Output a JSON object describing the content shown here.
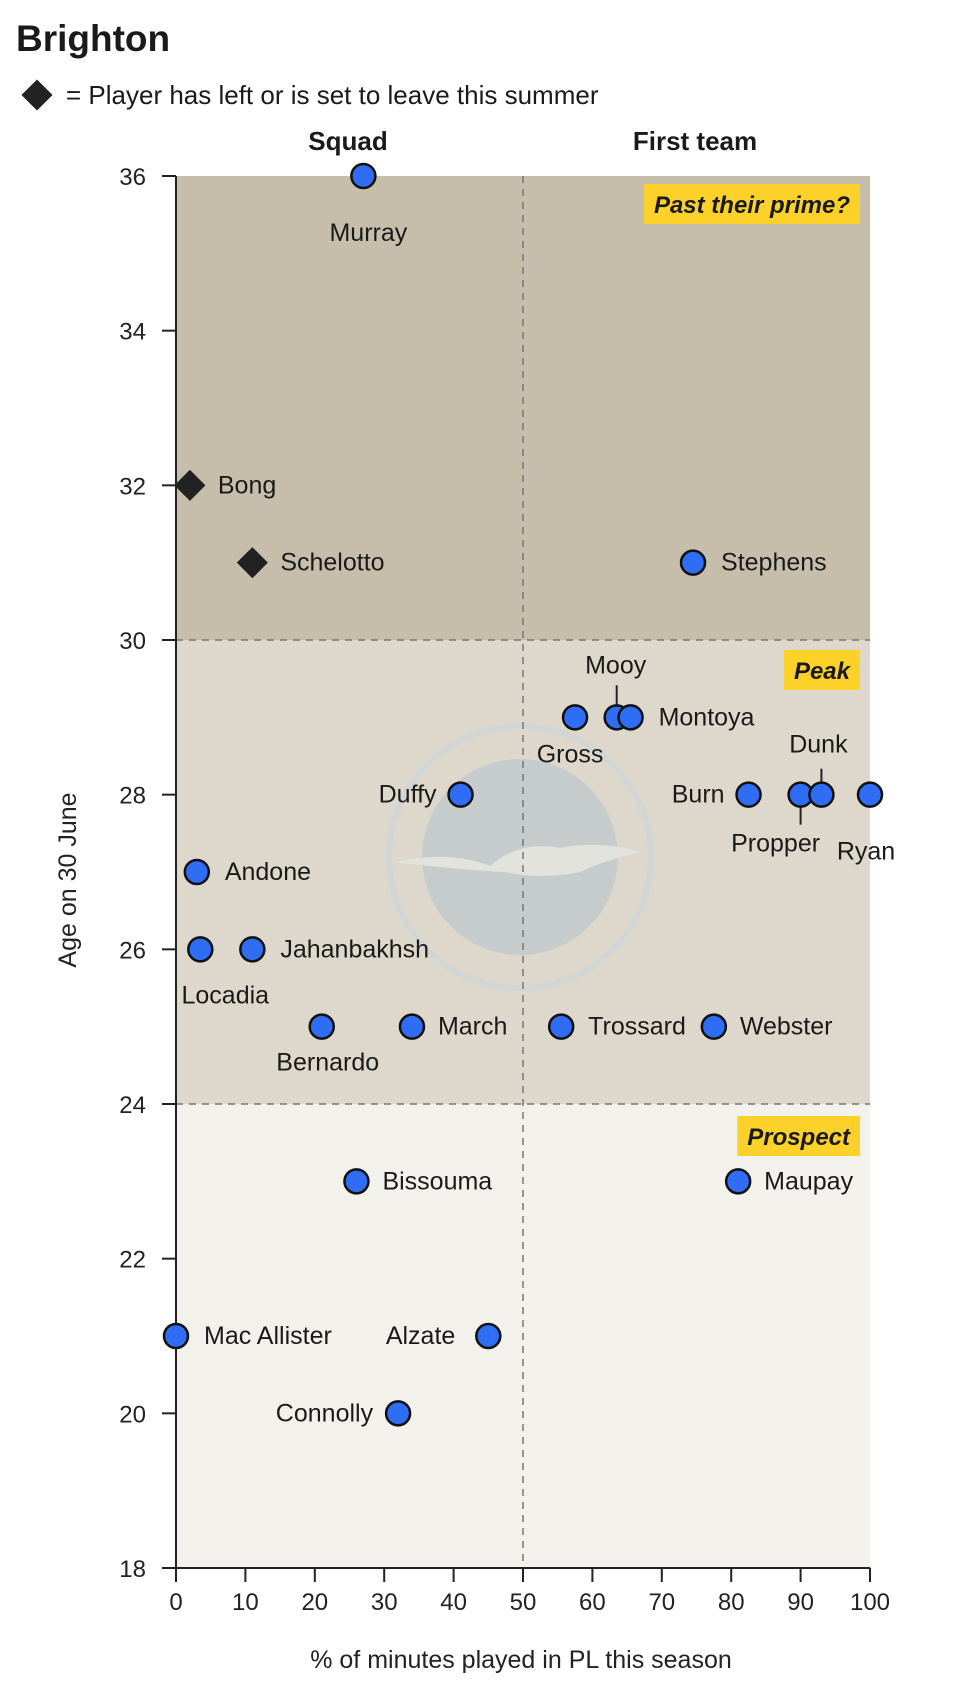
{
  "header": {
    "title": "Brighton",
    "legend_text": "= Player has left or is set to leave this summer"
  },
  "colors": {
    "zone_past_prime": "#c6beab",
    "zone_peak": "#ddd8cb",
    "zone_prospect": "#f3f1ec",
    "label_box": "#fcd12a",
    "active_marker": "#2f6df4",
    "leaving_marker": "#222222"
  },
  "chart_data": {
    "type": "scatter",
    "xlabel": "% of minutes played in PL this season",
    "ylabel": "Age on 30 June",
    "xlim": [
      0,
      100
    ],
    "ylim": [
      18,
      36
    ],
    "x_ticks": [
      0,
      10,
      20,
      30,
      40,
      50,
      60,
      70,
      80,
      90,
      100
    ],
    "y_ticks": [
      18,
      20,
      22,
      24,
      26,
      28,
      30,
      32,
      34,
      36
    ],
    "column_headers": [
      "Squad",
      "First team"
    ],
    "reference_lines": {
      "x": 50,
      "y": [
        24,
        30
      ]
    },
    "zones": [
      {
        "label": "Past their prime?",
        "y_range": [
          30,
          36
        ]
      },
      {
        "label": "Peak",
        "y_range": [
          24,
          30
        ]
      },
      {
        "label": "Prospect",
        "y_range": [
          18,
          24
        ]
      }
    ],
    "points": [
      {
        "name": "Murray",
        "x": 27,
        "y": 36,
        "leaving": false
      },
      {
        "name": "Bong",
        "x": 2,
        "y": 32,
        "leaving": true
      },
      {
        "name": "Schelotto",
        "x": 11,
        "y": 31,
        "leaving": true
      },
      {
        "name": "Stephens",
        "x": 74.5,
        "y": 31,
        "leaving": false
      },
      {
        "name": "Mooy",
        "x": 63.5,
        "y": 29,
        "leaving": false
      },
      {
        "name": "Montoya",
        "x": 65.5,
        "y": 29,
        "leaving": false
      },
      {
        "name": "Gross",
        "x": 57.5,
        "y": 29,
        "leaving": false
      },
      {
        "name": "Duffy",
        "x": 41,
        "y": 28,
        "leaving": false
      },
      {
        "name": "Burn",
        "x": 82.5,
        "y": 28,
        "leaving": false
      },
      {
        "name": "Propper",
        "x": 90,
        "y": 28,
        "leaving": false
      },
      {
        "name": "Dunk",
        "x": 93,
        "y": 28,
        "leaving": false
      },
      {
        "name": "Ryan",
        "x": 100,
        "y": 28,
        "leaving": false
      },
      {
        "name": "Andone",
        "x": 3,
        "y": 27,
        "leaving": false
      },
      {
        "name": "Locadia",
        "x": 3.5,
        "y": 26,
        "leaving": false
      },
      {
        "name": "Jahanbakhsh",
        "x": 11,
        "y": 26,
        "leaving": false
      },
      {
        "name": "Bernardo",
        "x": 21,
        "y": 25,
        "leaving": false
      },
      {
        "name": "March",
        "x": 34,
        "y": 25,
        "leaving": false
      },
      {
        "name": "Trossard",
        "x": 55.5,
        "y": 25,
        "leaving": false
      },
      {
        "name": "Webster",
        "x": 77.5,
        "y": 25,
        "leaving": false
      },
      {
        "name": "Bissouma",
        "x": 26,
        "y": 23,
        "leaving": false
      },
      {
        "name": "Maupay",
        "x": 81,
        "y": 23,
        "leaving": false
      },
      {
        "name": "Mac Allister",
        "x": 0,
        "y": 21,
        "leaving": false
      },
      {
        "name": "Alzate",
        "x": 45,
        "y": 21,
        "leaving": false
      },
      {
        "name": "Connolly",
        "x": 32,
        "y": 20,
        "leaving": false
      }
    ]
  }
}
